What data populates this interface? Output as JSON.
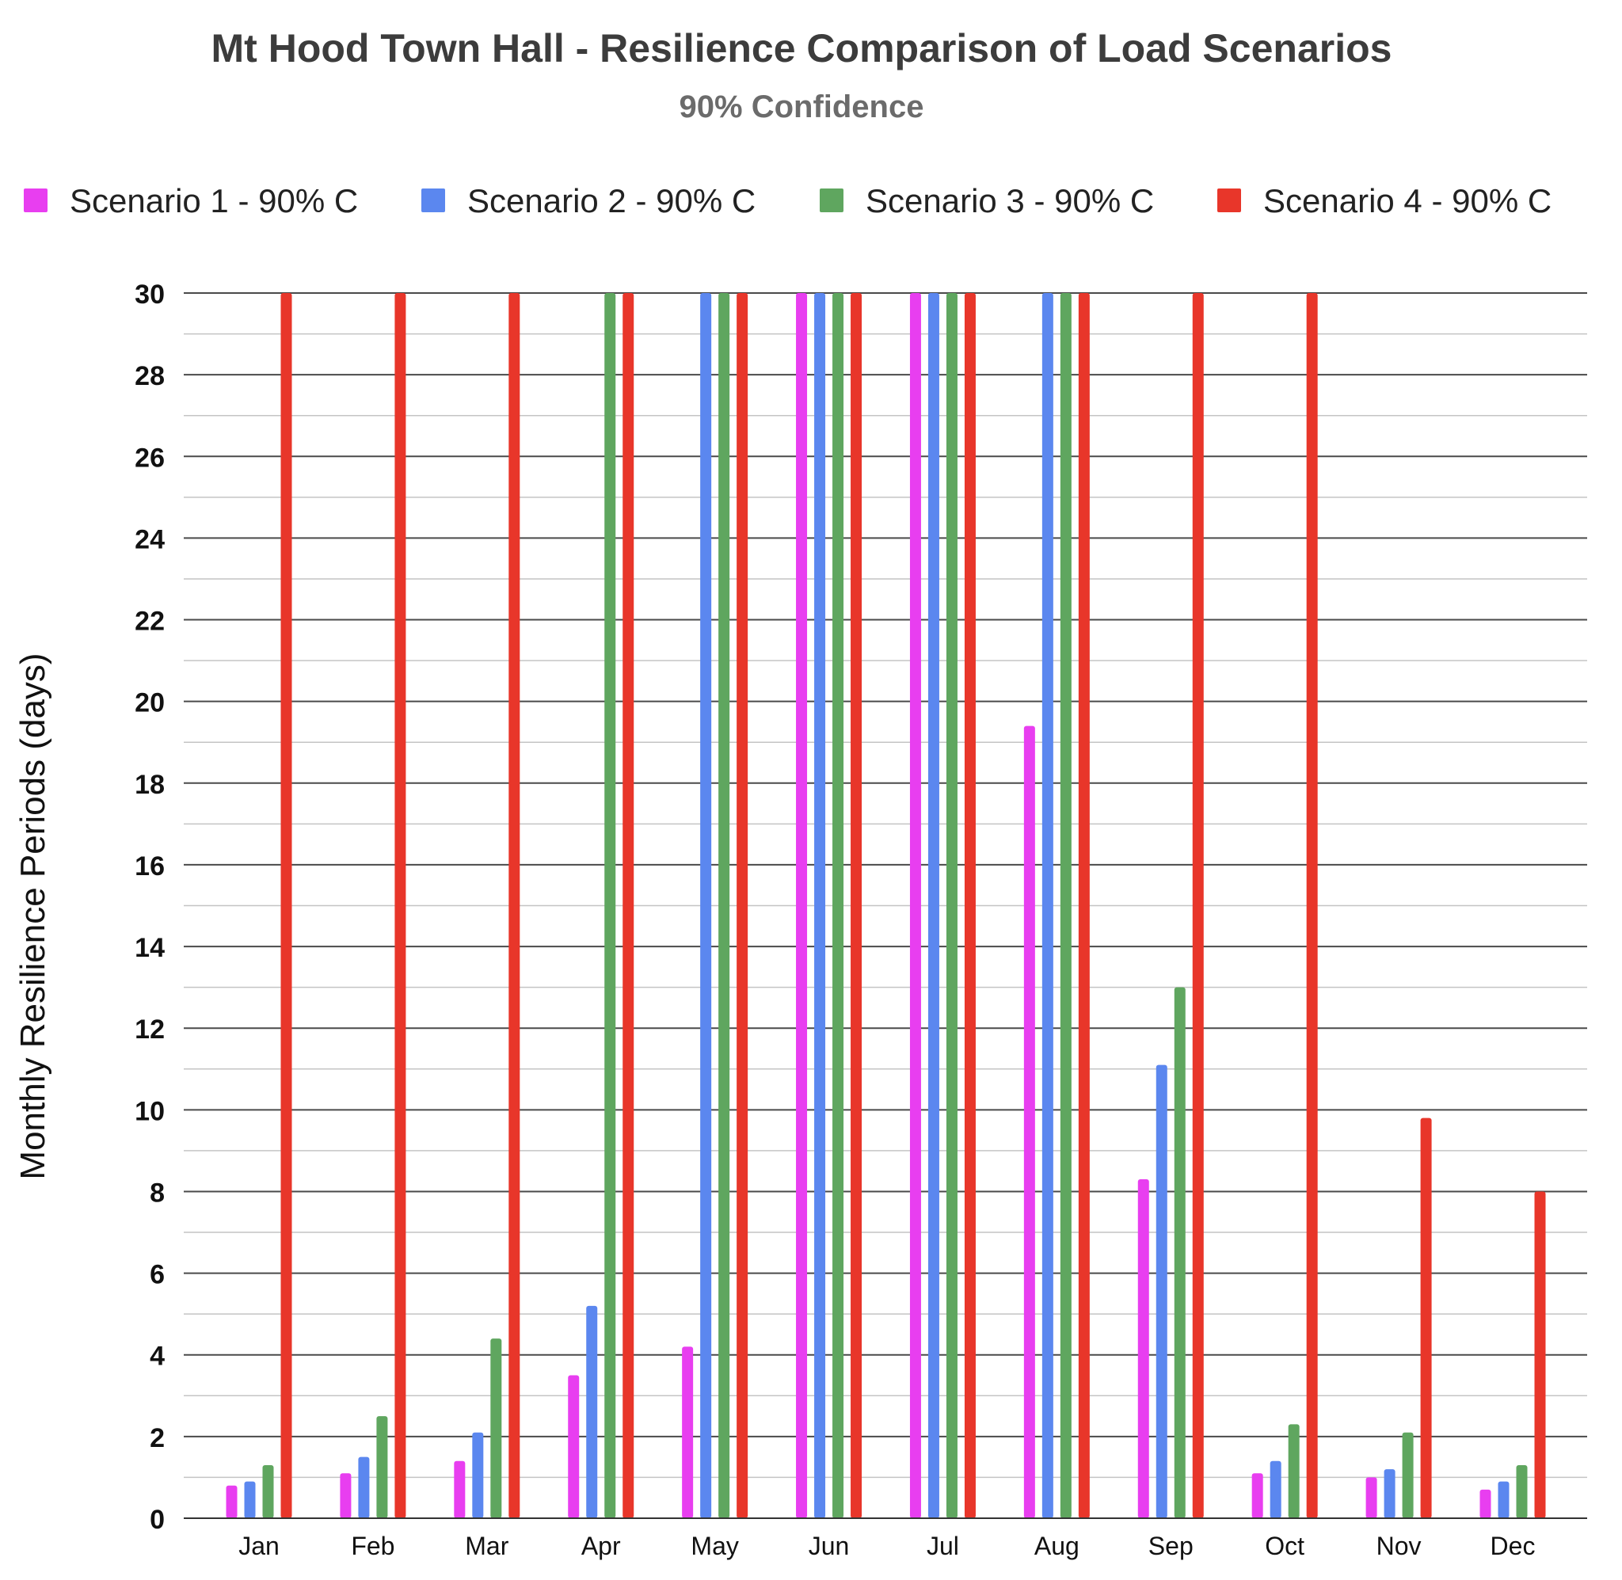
{
  "chart_data": {
    "type": "bar",
    "title": "Mt Hood Town Hall - Resilience Comparison of Load Scenarios",
    "subtitle": "90% Confidence",
    "xlabel": "",
    "ylabel": "Monthly Resilience Periods (days)",
    "ylim": [
      0,
      30
    ],
    "yticks": [
      0,
      2,
      4,
      6,
      8,
      10,
      12,
      14,
      16,
      18,
      20,
      22,
      24,
      26,
      28,
      30
    ],
    "grid": true,
    "legend_position": "top",
    "categories": [
      "Jan",
      "Feb",
      "Mar",
      "Apr",
      "May",
      "Jun",
      "Jul",
      "Aug",
      "Sep",
      "Oct",
      "Nov",
      "Dec"
    ],
    "series": [
      {
        "name": "Scenario 1 - 90% C",
        "color": "#e83ef0",
        "values": [
          0.8,
          1.1,
          1.4,
          3.5,
          4.2,
          30,
          30,
          19.4,
          8.3,
          1.1,
          1.0,
          0.7
        ]
      },
      {
        "name": "Scenario 2 - 90% C",
        "color": "#5b87ef",
        "values": [
          0.9,
          1.5,
          2.1,
          5.2,
          30,
          30,
          30,
          30,
          11.1,
          1.4,
          1.2,
          0.9
        ]
      },
      {
        "name": "Scenario 3 - 90% C",
        "color": "#5fa65f",
        "values": [
          1.3,
          2.5,
          4.4,
          30,
          30,
          30,
          30,
          30,
          13.0,
          2.3,
          2.1,
          1.3
        ]
      },
      {
        "name": "Scenario 4 - 90% C",
        "color": "#e8362a",
        "values": [
          30,
          30,
          30,
          30,
          30,
          30,
          30,
          30,
          30,
          30,
          9.8,
          8.0
        ]
      }
    ]
  }
}
